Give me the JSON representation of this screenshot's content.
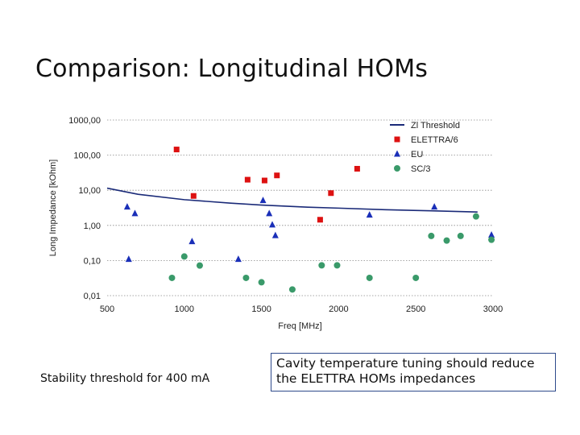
{
  "slide": {
    "title": "Comparison: Longitudinal HOMs",
    "caption_left": "Stability threshold for 400 mA",
    "note": "Cavity temperature tuning should reduce the ELETTRA HOMs impedances"
  },
  "chart_data": {
    "type": "scatter",
    "title": "",
    "xlabel": "Freq [MHz]",
    "ylabel": "Long Impedance [kOhm]",
    "xlim": [
      500,
      3000
    ],
    "ylim": [
      0.01,
      1000
    ],
    "yscale": "log",
    "x_ticks": [
      "500",
      "1000",
      "1500",
      "2000",
      "2500",
      "3000"
    ],
    "y_ticks": [
      "1000,00",
      "100,00",
      "10,00",
      "1,00",
      "0,10",
      "0,01"
    ],
    "grid": "horizontal dotted",
    "legend_position": "top-right",
    "series": [
      {
        "name": "Zl Threshold",
        "kind": "line",
        "color": "#1a2a78",
        "x": [
          500,
          700,
          1000,
          1300,
          1500,
          1800,
          2000,
          2300,
          2600,
          2900
        ],
        "y": [
          11.5,
          7.7,
          5.4,
          4.3,
          3.8,
          3.3,
          3.1,
          2.8,
          2.6,
          2.4
        ]
      },
      {
        "name": "ELETTRA/6",
        "kind": "marker",
        "marker": "square",
        "color": "#dd1111",
        "x": [
          950,
          1060,
          1410,
          1520,
          1600,
          1880,
          1950,
          2120
        ],
        "y": [
          145,
          6.9,
          20,
          19,
          26.5,
          1.45,
          8.3,
          41
        ]
      },
      {
        "name": "EU",
        "kind": "marker",
        "marker": "triangle",
        "color": "#1a2fb8",
        "x": [
          630,
          680,
          640,
          1050,
          1350,
          1510,
          1550,
          1570,
          1590,
          2200,
          2620,
          2990
        ],
        "y": [
          3.4,
          2.2,
          0.11,
          0.35,
          0.11,
          5.2,
          2.2,
          1.05,
          0.52,
          2.0,
          3.4,
          0.54
        ]
      },
      {
        "name": "SC/3",
        "kind": "marker",
        "marker": "circle",
        "color": "#3a9a6a",
        "x": [
          920,
          1000,
          1100,
          1400,
          1500,
          1700,
          1890,
          1990,
          2200,
          2500,
          2600,
          2700,
          2790,
          2890,
          2990
        ],
        "y": [
          0.032,
          0.13,
          0.072,
          0.032,
          0.024,
          0.015,
          0.073,
          0.073,
          0.032,
          0.032,
          0.5,
          0.37,
          0.5,
          1.8,
          0.39
        ]
      }
    ]
  }
}
